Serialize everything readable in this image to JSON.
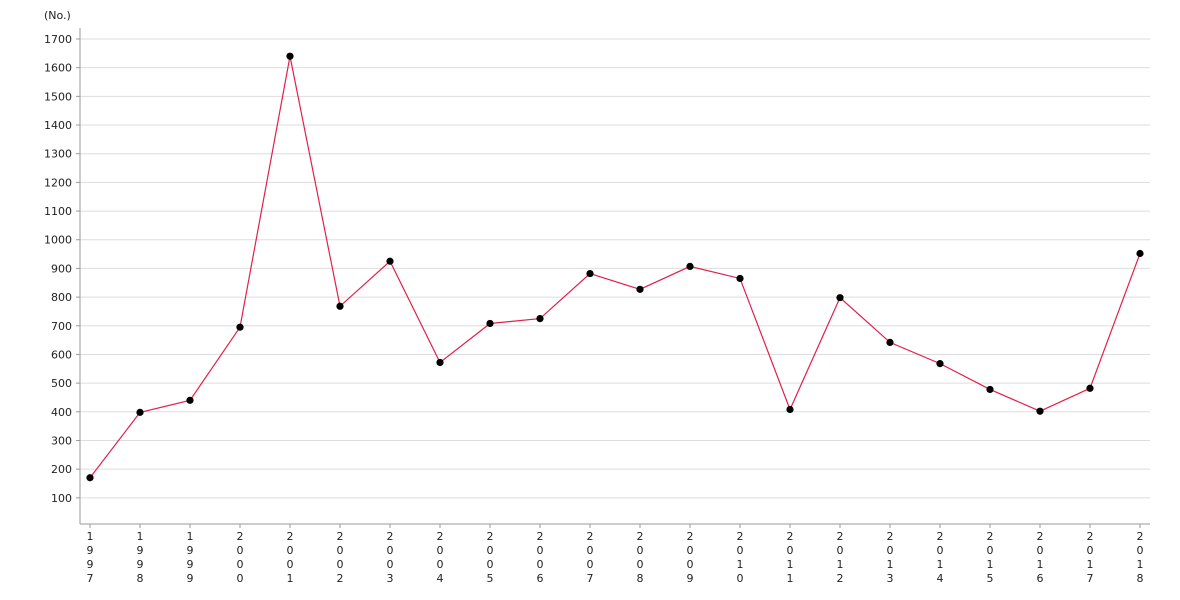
{
  "chart_data": {
    "type": "line",
    "unit_label": "(No.)",
    "categories": [
      "1997",
      "1998",
      "1999",
      "2000",
      "2001",
      "2002",
      "2003",
      "2004",
      "2005",
      "2006",
      "2007",
      "2008",
      "2009",
      "2010",
      "2011",
      "2012",
      "2013",
      "2014",
      "2015",
      "2016",
      "2017",
      "2018"
    ],
    "series": [
      {
        "values": [
          170,
          398,
          440,
          695,
          1640,
          768,
          925,
          572,
          708,
          725,
          882,
          827,
          907,
          865,
          408,
          798,
          642,
          568,
          478,
          402,
          482,
          952
        ]
      }
    ],
    "ylim": [
      0,
      1700
    ],
    "yticks": [
      100,
      200,
      300,
      400,
      500,
      600,
      700,
      800,
      900,
      1000,
      1100,
      1200,
      1300,
      1400,
      1500,
      1600,
      1700
    ],
    "grid": true,
    "legend": "none",
    "colors": {
      "line": "#e0204a",
      "marker": "#000000",
      "grid": "#dddddd",
      "axis": "#999999"
    }
  }
}
